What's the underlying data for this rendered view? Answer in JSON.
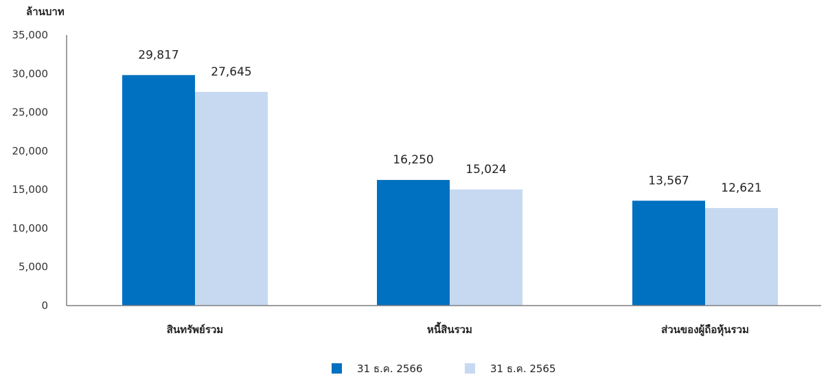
{
  "colors": {
    "series_2566": "#0070c0",
    "series_2565": "#c6d9f1",
    "axis": "#7f7f7f"
  },
  "chart_data": {
    "type": "bar",
    "title": "",
    "unit_label": "ล้านบาท",
    "xlabel": "",
    "ylabel": "ล้านบาท",
    "ylim": [
      0,
      35000
    ],
    "y_ticks": [
      "0",
      "5,000",
      "10,000",
      "15,000",
      "20,000",
      "25,000",
      "30,000",
      "35,000"
    ],
    "grid": false,
    "legend_position": "bottom",
    "categories": [
      "สินทรัพย์รวม",
      "หนี้สินรวม",
      "ส่วนของผู้ถือหุ้นรวม"
    ],
    "series": [
      {
        "name": "31 ธ.ค. 2566",
        "values": [
          29817,
          16250,
          13567
        ],
        "labels": [
          "29,817",
          "16,250",
          "13,567"
        ]
      },
      {
        "name": "31 ธ.ค. 2565",
        "values": [
          27645,
          15024,
          12621
        ],
        "labels": [
          "27,645",
          "15,024",
          "12,621"
        ]
      }
    ]
  }
}
